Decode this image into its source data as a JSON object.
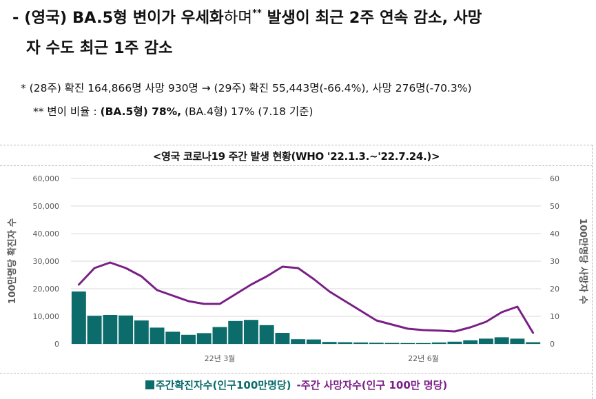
{
  "headline": {
    "prefix": "- (영국) BA.5형 변이가 우세화",
    "light": "하며",
    "sup": "**",
    "rest": " 발생이 최근 2주 연속 감소, 사망",
    "line2": "자 수도 최근 1주 감소"
  },
  "notes": {
    "note1": "* (28주) 확진 164,866명 사망 930명 → (29주) 확진 55,443명(-66.4%), 사망 276명(-70.3%)",
    "note2_prefix": "** 변이 비율 : ",
    "note2_bold": "(BA.5형) 78%,",
    "note2_suffix": " (BA.4형) 17% (7.18 기준)"
  },
  "chart_data": {
    "type": "bar+line",
    "title": "<영국 코로나19 주간 발생 현황(WHO '22.1.3.~'22.7.24.)>",
    "ylabel_left": "100만명당 확진자 수",
    "ylabel_right": "100만명당 사망자 수",
    "ylim_left": [
      0,
      60000
    ],
    "ylim_right": [
      0,
      60
    ],
    "yticks_left": [
      "0",
      "10,000",
      "20,000",
      "30,000",
      "40,000",
      "50,000",
      "60,000"
    ],
    "yticks_right": [
      "0",
      "10",
      "20",
      "30",
      "40",
      "50",
      "60"
    ],
    "xtick_labels": [
      {
        "label": "22년 3월",
        "week_index": 9
      },
      {
        "label": "22년 6월",
        "week_index": 22
      }
    ],
    "grid": "horizontal",
    "series": [
      {
        "name": "주간확진자수(인구100만명당)",
        "type": "bar",
        "axis": "left",
        "color": "#0c6b6b",
        "values": [
          19000,
          10200,
          10500,
          10300,
          8500,
          5900,
          4400,
          3300,
          3900,
          6100,
          8300,
          8700,
          6800,
          4000,
          1700,
          1600,
          700,
          600,
          500,
          400,
          350,
          300,
          300,
          500,
          800,
          1300,
          1900,
          2400,
          1900,
          600
        ]
      },
      {
        "name": "주간 사망자수(인구 100만 명당)",
        "type": "line",
        "axis": "right",
        "color": "#7a1f86",
        "values": [
          21.5,
          27.5,
          29.5,
          27.5,
          24.5,
          19.5,
          17.5,
          15.5,
          14.5,
          14.5,
          18,
          21.5,
          24.5,
          28,
          27.5,
          23.5,
          19,
          15.5,
          12,
          8.5,
          7,
          5.5,
          5,
          4.8,
          4.5,
          6,
          8,
          11.5,
          13.5,
          4
        ]
      }
    ]
  },
  "legend": {
    "cases": "주간확진자수(인구100만명당)",
    "deaths": "-주간 사망자수(인구 100만 명당)"
  },
  "colors": {
    "bar": "#0c6b6b",
    "line": "#7a1f86",
    "grid": "#d9d9d9",
    "tick": "#595959"
  }
}
